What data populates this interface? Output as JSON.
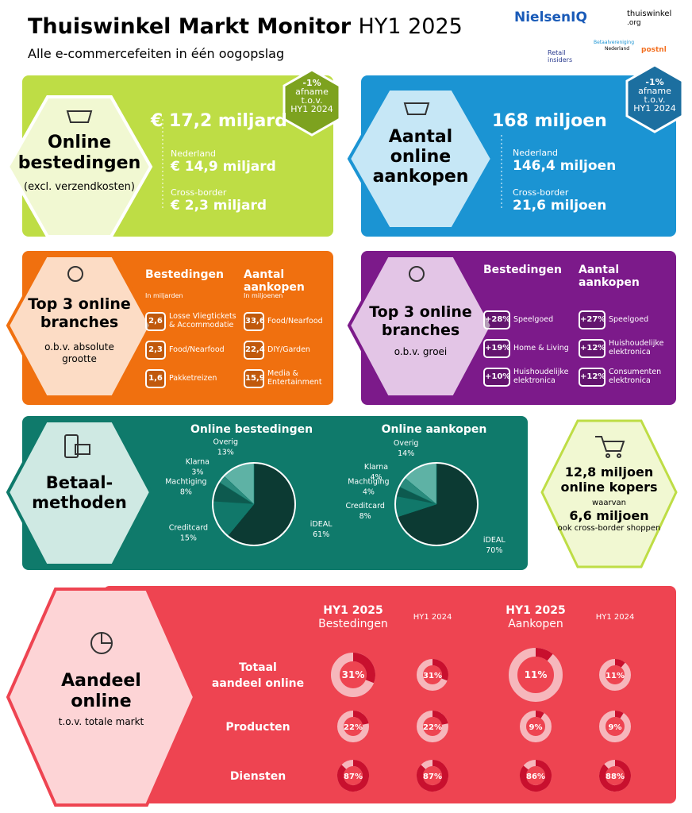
{
  "header": {
    "title": "Thuiswinkel Markt Monitor",
    "period": "HY1 2025",
    "subtitle": "Alle e-commercefeiten in één oogopslag",
    "logos": [
      "NielsenIQ",
      "thuiswinkel",
      ".org",
      "Retail",
      "insiders",
      "Betaalvereniging",
      "Nederland",
      "postnl"
    ]
  },
  "spend": {
    "badge": [
      "-1%",
      "afname",
      "t.o.v.",
      "HY1 2024"
    ],
    "title": [
      "Online",
      "bestedingen"
    ],
    "note": "(excl. verzendkosten)",
    "total": "€ 17,2 miljard",
    "nl_label": "Nederland",
    "nl": "€ 14,9 miljard",
    "cb_label": "Cross-border",
    "cb": "€ 2,3 miljard"
  },
  "purchases": {
    "badge": [
      "-1%",
      "afname",
      "t.o.v.",
      "HY1 2024"
    ],
    "title": [
      "Aantal",
      "online",
      "aankopen"
    ],
    "total": "168 miljoen",
    "nl_label": "Nederland",
    "nl": "146,4 miljoen",
    "cb_label": "Cross-border",
    "cb": "21,6 miljoen"
  },
  "top_size": {
    "title": [
      "Top 3 online",
      "branches"
    ],
    "subtitle": [
      "o.b.v. absolute",
      "grootte"
    ],
    "col1": {
      "head": [
        "Bestedingen"
      ],
      "unit": "In miljarden",
      "items": [
        {
          "value": "2,6",
          "label": [
            "Losse Vliegtickets",
            "& Accommodatie"
          ]
        },
        {
          "value": "2,3",
          "label": [
            "Food/Nearfood"
          ]
        },
        {
          "value": "1,6",
          "label": [
            "Pakketreizen"
          ]
        }
      ]
    },
    "col2": {
      "head": [
        "Aantal",
        "aankopen"
      ],
      "unit": "In miljoenen",
      "items": [
        {
          "value": "33,6",
          "label": [
            "Food/Nearfood"
          ]
        },
        {
          "value": "22,4",
          "label": [
            "DIY/Garden"
          ]
        },
        {
          "value": "15,9",
          "label": [
            "Media &",
            "Entertainment"
          ]
        }
      ]
    }
  },
  "top_growth": {
    "title": [
      "Top 3 online",
      "branches"
    ],
    "subtitle": [
      "o.b.v. groei"
    ],
    "col1": {
      "head": [
        "Bestedingen"
      ],
      "items": [
        {
          "value": "+28%",
          "label": [
            "Speelgoed"
          ]
        },
        {
          "value": "+19%",
          "label": [
            "Home & Living"
          ]
        },
        {
          "value": "+10%",
          "label": [
            "Huishoudelijke",
            "elektronica"
          ]
        }
      ]
    },
    "col2": {
      "head": [
        "Aantal",
        "aankopen"
      ],
      "items": [
        {
          "value": "+27%",
          "label": [
            "Speelgoed"
          ]
        },
        {
          "value": "+12%",
          "label": [
            "Huishoudelijke",
            "elektronica"
          ]
        },
        {
          "value": "+12%",
          "label": [
            "Consumenten",
            "elektronica"
          ]
        }
      ]
    }
  },
  "payment": {
    "title": [
      "Betaal-",
      "methoden"
    ],
    "pies": [
      {
        "title": "Online bestedingen",
        "categories": [
          "iDEAL",
          "Creditcard",
          "Machtiging",
          "Klarna",
          "Overig"
        ],
        "values": [
          61,
          15,
          8,
          3,
          13
        ],
        "value_labels": [
          "61%",
          "15%",
          "8%",
          "3%",
          "13%"
        ],
        "colors": [
          "#0c3a33",
          "#11786a",
          "#0d5a4f",
          "#2a8b7d",
          "#5eb2a5"
        ]
      },
      {
        "title": "Online aankopen",
        "categories": [
          "iDEAL",
          "Creditcard",
          "Machtiging",
          "Klarna",
          "Overig"
        ],
        "values": [
          70,
          8,
          4,
          4,
          14
        ],
        "value_labels": [
          "70%",
          "8%",
          "4%",
          "4%",
          "14%"
        ],
        "colors": [
          "#0c3a33",
          "#11786a",
          "#0d5a4f",
          "#2a8b7d",
          "#5eb2a5"
        ]
      }
    ]
  },
  "buyers": {
    "line1": "12,8 miljoen",
    "line2": "online kopers",
    "line3": "waarvan",
    "line4": "6,6 miljoen",
    "line5": "ook cross-border shoppen"
  },
  "share": {
    "title": [
      "Aandeel",
      "online"
    ],
    "subtitle": "t.o.v. totale markt",
    "columns": [
      {
        "period": "HY1 2025",
        "measure": "Bestedingen"
      },
      {
        "period": "HY1 2024"
      },
      {
        "period": "HY1 2025",
        "measure": "Aankopen"
      },
      {
        "period": "HY1 2024"
      }
    ],
    "rows": [
      {
        "label": [
          "Totaal",
          "aandeel online"
        ],
        "values": [
          31,
          31,
          11,
          11
        ],
        "value_labels": [
          "31%",
          "31%",
          "11%",
          "11%"
        ]
      },
      {
        "label": [
          "Producten"
        ],
        "values": [
          22,
          22,
          9,
          9
        ],
        "value_labels": [
          "22%",
          "22%",
          "9%",
          "9%"
        ]
      },
      {
        "label": [
          "Diensten"
        ],
        "values": [
          87,
          87,
          86,
          88
        ],
        "value_labels": [
          "87%",
          "87%",
          "86%",
          "88%"
        ]
      }
    ]
  }
}
